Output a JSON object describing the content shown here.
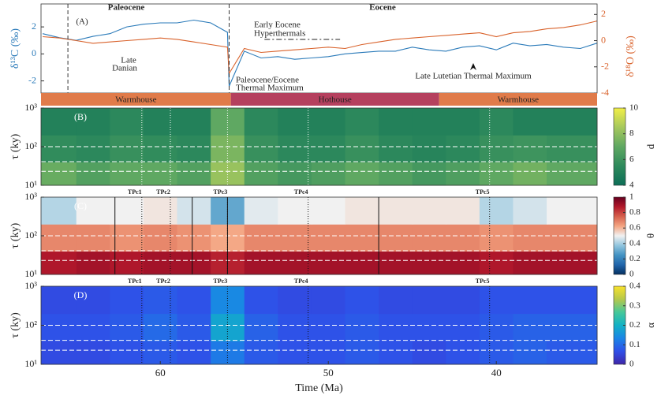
{
  "chart_data": [
    {
      "type": "line",
      "annotations": [
        "Paleocene",
        "Eocene",
        "(A)",
        "Late",
        "Danian",
        "Early Eocene",
        "Hyperthermals",
        "Paleocene/Eocene",
        "Thermal Maximum",
        "Late Lutetian Thermal Maximum"
      ],
      "ylabel": "δ¹³C (‰)",
      "y2label": "δ¹⁸O (‰)",
      "xlim": [
        67.1,
        34.0
      ],
      "ylim": [
        -2.9,
        3.7
      ],
      "yticks": [
        -2,
        0,
        2
      ],
      "y2lim": [
        -4,
        2.8
      ],
      "y2ticks": [
        -4,
        -2,
        0,
        2
      ],
      "x": [
        67,
        66,
        65,
        64,
        63,
        62,
        61,
        60,
        59,
        58,
        57,
        56,
        55.9,
        55,
        54,
        53,
        52,
        51,
        50,
        49,
        48,
        47,
        46,
        45,
        44,
        43,
        42,
        41,
        40,
        39,
        38,
        37,
        36,
        35,
        34
      ],
      "series": [
        {
          "name": "δ13C",
          "color": "#2a7ab9",
          "values": [
            1.5,
            1.2,
            1.0,
            1.3,
            1.5,
            2.0,
            2.2,
            2.3,
            2.3,
            2.5,
            2.3,
            1.6,
            -2.4,
            0.2,
            -0.3,
            -0.2,
            -0.4,
            -0.3,
            -0.2,
            0.0,
            0.1,
            0.2,
            0.2,
            0.5,
            0.3,
            0.2,
            0.5,
            0.6,
            0.3,
            0.8,
            0.6,
            0.7,
            0.5,
            0.4,
            0.8
          ]
        },
        {
          "name": "δ18O",
          "color": "#d9622b",
          "axis": "y2",
          "values": [
            0.3,
            0.2,
            0.0,
            -0.2,
            -0.1,
            0.0,
            0.1,
            0.2,
            0.1,
            -0.1,
            -0.3,
            -0.5,
            -2.5,
            -0.6,
            -0.9,
            -0.8,
            -0.7,
            -0.6,
            -0.5,
            -0.6,
            -0.3,
            -0.1,
            0.1,
            0.2,
            0.3,
            0.4,
            0.5,
            0.6,
            0.3,
            0.6,
            0.7,
            0.9,
            1.0,
            1.2,
            1.5
          ]
        }
      ],
      "boundaries": [
        65.5,
        55.9
      ],
      "hyperthermal_span": [
        53.8,
        49.3
      ],
      "bands": {
        "labels": [
          "Warmhouse",
          "Hothouse",
          "Warmhouse"
        ],
        "edges": [
          67.1,
          55.8,
          43.4,
          34.0
        ],
        "colors": [
          "#e07b4a",
          "#b5405e",
          "#e07b4a"
        ]
      }
    },
    {
      "type": "heatmap",
      "label": "(B)",
      "ylabel": "τ (ky)",
      "clabel": "d",
      "xlim": [
        67.1,
        34.0
      ],
      "ylim": [
        10,
        1000
      ],
      "log_y": true,
      "yticks": [
        {
          "value": 10,
          "label": "10¹"
        },
        {
          "value": 100,
          "label": "10²"
        },
        {
          "value": 1000,
          "label": "10³"
        }
      ],
      "x_edges": [
        67.1,
        65,
        63,
        61,
        59,
        57,
        55,
        53,
        51,
        49,
        47,
        45,
        43,
        41,
        39,
        37,
        34
      ],
      "y_edges": [
        10,
        40,
        200,
        1000
      ],
      "values": [
        [
          7.2,
          6.6,
          7.0,
          7.0,
          6.6,
          8.2,
          6.6,
          6.2,
          6.5,
          7.0,
          6.6,
          6.2,
          6.5,
          7.0,
          7.4,
          7.0
        ],
        [
          5.6,
          5.4,
          5.8,
          5.6,
          5.4,
          7.6,
          5.8,
          5.4,
          5.4,
          5.8,
          5.4,
          5.2,
          5.4,
          5.8,
          6.0,
          5.8
        ],
        [
          5.0,
          5.0,
          5.4,
          5.0,
          5.0,
          7.0,
          5.4,
          5.0,
          5.0,
          5.4,
          5.0,
          5.0,
          5.0,
          5.4,
          5.0,
          5.0
        ]
      ],
      "clim": [
        4,
        10
      ],
      "cticks": [
        4,
        6,
        8,
        10
      ],
      "colormap": [
        "#0c6e57",
        "#2e8a5c",
        "#5fa862",
        "#a6c85d",
        "#f2ef47"
      ],
      "hlines": [
        23,
        41,
        100
      ],
      "dotted_x": [
        61.1,
        59.4,
        56.0,
        51.2,
        40.4
      ]
    },
    {
      "type": "heatmap",
      "label": "(C)",
      "ylabel": "τ (ky)",
      "clabel": "θ",
      "xlim": [
        67.1,
        34.0
      ],
      "ylim": [
        10,
        1000
      ],
      "log_y": true,
      "yticks": [
        {
          "value": 10,
          "label": "10¹"
        },
        {
          "value": 100,
          "label": "10²"
        },
        {
          "value": 1000,
          "label": "10³"
        }
      ],
      "x_edges": [
        67.1,
        65,
        63,
        61,
        59,
        57,
        55,
        53,
        51,
        49,
        47,
        45,
        43,
        41,
        39,
        37,
        34
      ],
      "y_edges": [
        10,
        40,
        200,
        1000
      ],
      "values": [
        [
          0.88,
          0.9,
          0.88,
          0.9,
          0.9,
          0.86,
          0.9,
          0.9,
          0.9,
          0.9,
          0.9,
          0.9,
          0.9,
          0.88,
          0.9,
          0.9
        ],
        [
          0.68,
          0.68,
          0.66,
          0.68,
          0.66,
          0.62,
          0.68,
          0.68,
          0.68,
          0.68,
          0.68,
          0.68,
          0.68,
          0.66,
          0.68,
          0.68
        ],
        [
          0.42,
          0.5,
          0.5,
          0.52,
          0.46,
          0.3,
          0.48,
          0.5,
          0.5,
          0.52,
          0.52,
          0.52,
          0.52,
          0.42,
          0.46,
          0.5
        ]
      ],
      "clim": [
        0,
        1
      ],
      "cticks": [
        0,
        0.2,
        0.4,
        0.6,
        0.8,
        1
      ],
      "colormap": [
        "#053061",
        "#2166ac",
        "#4393c3",
        "#92c5de",
        "#f1f1f1",
        "#f4a582",
        "#d6604d",
        "#b2182b",
        "#67001f"
      ],
      "hlines": [
        23,
        41,
        100
      ],
      "dotted_x": [
        61.1,
        59.4,
        56.0,
        51.2,
        40.4
      ],
      "solid_x": [
        62.7,
        58.1,
        56.0,
        47.0
      ],
      "tpc_labels": [
        "TPc1",
        "TPc2",
        "TPc3",
        "TPc4",
        "TPc5"
      ]
    },
    {
      "type": "heatmap",
      "label": "(D)",
      "ylabel": "τ (ky)",
      "clabel": "α",
      "xlim": [
        67.1,
        34.0
      ],
      "ylim": [
        10,
        1000
      ],
      "log_y": true,
      "yticks": [
        {
          "value": 10,
          "label": "10¹"
        },
        {
          "value": 100,
          "label": "10²"
        },
        {
          "value": 1000,
          "label": "10³"
        }
      ],
      "x_edges": [
        67.1,
        65,
        63,
        61,
        59,
        57,
        55,
        53,
        51,
        49,
        47,
        45,
        43,
        41,
        39,
        37,
        34
      ],
      "y_edges": [
        10,
        40,
        200,
        1000
      ],
      "values": [
        [
          0.06,
          0.06,
          0.07,
          0.08,
          0.07,
          0.12,
          0.08,
          0.07,
          0.07,
          0.08,
          0.07,
          0.06,
          0.07,
          0.08,
          0.09,
          0.08
        ],
        [
          0.07,
          0.07,
          0.08,
          0.1,
          0.08,
          0.18,
          0.09,
          0.07,
          0.07,
          0.08,
          0.07,
          0.07,
          0.07,
          0.08,
          0.09,
          0.09
        ],
        [
          0.06,
          0.06,
          0.07,
          0.08,
          0.07,
          0.14,
          0.07,
          0.06,
          0.06,
          0.07,
          0.06,
          0.06,
          0.06,
          0.07,
          0.07,
          0.07
        ]
      ],
      "clim": [
        0,
        0.4
      ],
      "cticks": [
        0,
        0.1,
        0.2,
        0.3,
        0.4
      ],
      "colormap": [
        "#3e26a8",
        "#2f4fe8",
        "#1a85e6",
        "#12b1c5",
        "#45c89a",
        "#b5c84b",
        "#f9e22b"
      ],
      "hlines": [
        23,
        41,
        100
      ],
      "dotted_x": [
        61.1,
        59.4,
        56.0,
        51.2,
        40.4
      ],
      "tpc_labels": [
        "TPc1",
        "TPc2",
        "TPc3",
        "TPc4",
        "TPc5"
      ],
      "xticks": [
        60,
        50,
        40
      ],
      "xlabel": "Time (Ma)"
    }
  ]
}
